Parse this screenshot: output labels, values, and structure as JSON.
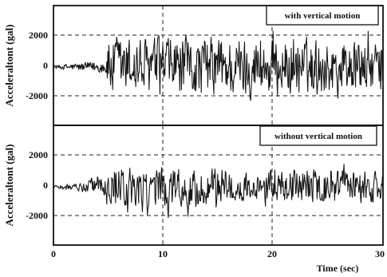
{
  "chart_data": [
    {
      "type": "line",
      "annotation": "with vertical motion",
      "ylabel": "Acceleraltont (gal)",
      "xlabel": "",
      "xlim": [
        0,
        30
      ],
      "ylim": [
        -3800,
        4000
      ],
      "yticks": [
        2000,
        0,
        -2000
      ],
      "ytick_labels": [
        "2000",
        "0",
        "-2000"
      ],
      "grid": true,
      "series": [
        {
          "samples_per_sec": 20,
          "envelope": [
            [
              0,
              150
            ],
            [
              1.5,
              300
            ],
            [
              3,
              400
            ],
            [
              4.7,
              550
            ],
            [
              4.9,
              1500
            ],
            [
              5.2,
              2500
            ],
            [
              7,
              2300
            ],
            [
              12,
              2300
            ],
            [
              17,
              2300
            ],
            [
              22,
              2200
            ],
            [
              26,
              2100
            ],
            [
              30,
              2000
            ]
          ]
        }
      ]
    },
    {
      "type": "line",
      "annotation": "without vertical motion",
      "ylabel": "Acceleraltont (gal)",
      "xlabel": "Time (sec)",
      "xlim": [
        0,
        30
      ],
      "ylim": [
        -3800,
        4000
      ],
      "yticks": [
        2000,
        0,
        -2000
      ],
      "ytick_labels": [
        "2000",
        "0",
        "-2000"
      ],
      "xticks": [
        0,
        10,
        20,
        30
      ],
      "xtick_labels": [
        "0",
        "10",
        "20",
        "30"
      ],
      "grid": true,
      "series": [
        {
          "samples_per_sec": 20,
          "envelope": [
            [
              0,
              150
            ],
            [
              2,
              300
            ],
            [
              3.5,
              500
            ],
            [
              4.8,
              900
            ],
            [
              5.2,
              1600
            ],
            [
              7,
              1500
            ],
            [
              10,
              1600
            ],
            [
              15,
              1400
            ],
            [
              20,
              1300
            ],
            [
              25,
              1300
            ],
            [
              30,
              1200
            ]
          ]
        }
      ]
    }
  ]
}
